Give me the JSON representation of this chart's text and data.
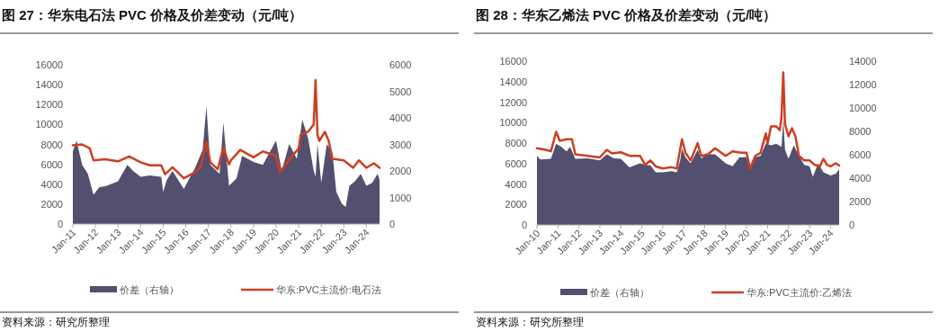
{
  "chart_data": [
    {
      "type": "line",
      "title": "图 27：华东电石法 PVC 价格及价差变动（元/吨）",
      "annotations": [
        "资料来源：研究所整理"
      ],
      "legend": "bottom",
      "grid": false,
      "xlim": [
        "2011-01",
        "2024-08"
      ],
      "xticks": [
        {
          "value": "2011-01",
          "label": "Jan-11"
        },
        {
          "value": "2012-01",
          "label": "Jan-12"
        },
        {
          "value": "2013-01",
          "label": "Jan-13"
        },
        {
          "value": "2014-01",
          "label": "Jan-14"
        },
        {
          "value": "2015-01",
          "label": "Jan-15"
        },
        {
          "value": "2016-01",
          "label": "Jan-16"
        },
        {
          "value": "2017-01",
          "label": "Jan-17"
        },
        {
          "value": "2018-01",
          "label": "Jan-18"
        },
        {
          "value": "2019-01",
          "label": "Jan-19"
        },
        {
          "value": "2020-01",
          "label": "Jan-20"
        },
        {
          "value": "2021-01",
          "label": "Jan-21"
        },
        {
          "value": "2022-01",
          "label": "Jan-22"
        },
        {
          "value": "2023-01",
          "label": "Jan-23"
        },
        {
          "value": "2024-01",
          "label": "Jan-24"
        }
      ],
      "ylim": [
        0,
        16000
      ],
      "yticks": [
        0,
        2000,
        4000,
        6000,
        8000,
        10000,
        12000,
        14000,
        16000
      ],
      "y2lim": [
        0,
        6000
      ],
      "y2ticks": [
        0,
        1000,
        2000,
        3000,
        4000,
        5000,
        6000
      ],
      "series": [
        {
          "name": "价差（右轴）",
          "type": "area",
          "axis": "y2",
          "color": "#534f6e",
          "x": [
            "2011-01",
            "2011-03",
            "2011-06",
            "2011-09",
            "2011-12",
            "2012-03",
            "2012-07",
            "2013-01",
            "2013-06",
            "2013-09",
            "2014-01",
            "2014-06",
            "2014-12",
            "2015-01",
            "2015-03",
            "2015-06",
            "2015-12",
            "2016-06",
            "2016-10",
            "2016-12",
            "2017-02",
            "2017-07",
            "2017-09",
            "2017-12",
            "2018-04",
            "2018-07",
            "2019-01",
            "2019-06",
            "2020-01",
            "2020-04",
            "2020-08",
            "2020-12",
            "2021-03",
            "2021-06",
            "2021-09",
            "2021-10",
            "2021-11",
            "2022-01",
            "2022-04",
            "2022-07",
            "2022-09",
            "2022-12",
            "2023-02",
            "2023-04",
            "2023-07",
            "2023-10",
            "2024-01",
            "2024-04",
            "2024-07",
            "2024-08"
          ],
          "values": [
            2740,
            3140,
            2230,
            1890,
            1100,
            1380,
            1440,
            1610,
            2230,
            2000,
            1780,
            1830,
            1780,
            1210,
            1660,
            2000,
            1320,
            2120,
            2800,
            4440,
            2230,
            1890,
            3820,
            1440,
            1720,
            2570,
            2340,
            2230,
            3140,
            2000,
            3020,
            2460,
            3930,
            3250,
            2000,
            1780,
            3020,
            1550,
            3020,
            2680,
            1210,
            760,
            645,
            1440,
            1610,
            1890,
            1440,
            1550,
            1890,
            1660
          ]
        },
        {
          "name": "华东:PVC主流价:电石法",
          "color": "#cc3f20",
          "x": [
            "2011-01",
            "2011-06",
            "2011-10",
            "2011-12",
            "2012-06",
            "2013-01",
            "2013-07",
            "2014-01",
            "2014-06",
            "2014-12",
            "2015-02",
            "2015-06",
            "2015-12",
            "2016-06",
            "2016-09",
            "2016-12",
            "2017-02",
            "2017-06",
            "2017-09",
            "2017-12",
            "2018-01",
            "2018-06",
            "2019-01",
            "2019-06",
            "2020-01",
            "2020-03",
            "2020-09",
            "2021-01",
            "2021-02",
            "2021-06",
            "2021-09",
            "2021-10",
            "2021-11",
            "2021-12",
            "2022-03",
            "2022-05",
            "2022-07",
            "2023-01",
            "2023-06",
            "2023-09",
            "2024-01",
            "2024-05",
            "2024-08"
          ],
          "values": [
            7900,
            8000,
            7600,
            6400,
            6500,
            6300,
            6800,
            6200,
            5900,
            5900,
            5000,
            5700,
            4600,
            5200,
            5800,
            8300,
            6200,
            5500,
            7700,
            6000,
            6400,
            7450,
            6700,
            7300,
            6850,
            5200,
            6700,
            7600,
            8960,
            9270,
            10000,
            14460,
            8960,
            8360,
            9270,
            8360,
            6550,
            6400,
            5650,
            6400,
            5650,
            6100,
            5650
          ]
        }
      ]
    },
    {
      "type": "line",
      "title": "图 28：华东乙烯法 PVC 价格及价差变动（元/吨）",
      "annotations": [
        "资料来源：研究所整理"
      ],
      "legend": "bottom",
      "grid": false,
      "xlim": [
        "2010-01",
        "2024-06"
      ],
      "xticks": [
        {
          "value": "2010-01",
          "label": "Jan-10"
        },
        {
          "value": "2011-01",
          "label": "Jan-11"
        },
        {
          "value": "2012-01",
          "label": "Jan-12"
        },
        {
          "value": "2013-01",
          "label": "Jan-13"
        },
        {
          "value": "2014-01",
          "label": "Jan-14"
        },
        {
          "value": "2015-01",
          "label": "Jan-15"
        },
        {
          "value": "2016-01",
          "label": "Jan-16"
        },
        {
          "value": "2017-01",
          "label": "Jan-17"
        },
        {
          "value": "2018-01",
          "label": "Jan-18"
        },
        {
          "value": "2019-01",
          "label": "Jan-19"
        },
        {
          "value": "2020-01",
          "label": "Jan-20"
        },
        {
          "value": "2021-01",
          "label": "Jan-21"
        },
        {
          "value": "2022-01",
          "label": "Jan-22"
        },
        {
          "value": "2023-01",
          "label": "Jan-23"
        },
        {
          "value": "2024-01",
          "label": "Jan-24"
        }
      ],
      "ylim": [
        0,
        16000
      ],
      "yticks": [
        0,
        2000,
        4000,
        6000,
        8000,
        10000,
        12000,
        14000,
        16000
      ],
      "y2lim": [
        0,
        14000
      ],
      "y2ticks": [
        0,
        2000,
        4000,
        6000,
        8000,
        10000,
        12000,
        14000
      ],
      "series": [
        {
          "name": "价差（右轴）",
          "type": "area",
          "axis": "y2",
          "color": "#534f6e",
          "x": [
            "2010-01",
            "2010-03",
            "2010-09",
            "2010-12",
            "2011-03",
            "2011-06",
            "2011-08",
            "2011-11",
            "2012-06",
            "2013-01",
            "2013-05",
            "2013-09",
            "2014-01",
            "2014-06",
            "2014-12",
            "2015-03",
            "2015-06",
            "2015-09",
            "2016-01",
            "2016-06",
            "2016-09",
            "2016-11",
            "2016-12",
            "2017-02",
            "2017-05",
            "2017-09",
            "2017-11",
            "2018-01",
            "2018-03",
            "2018-07",
            "2019-01",
            "2019-05",
            "2019-09",
            "2020-01",
            "2020-03",
            "2020-06",
            "2020-09",
            "2020-12",
            "2021-03",
            "2021-06",
            "2021-09",
            "2021-10",
            "2021-11",
            "2022-01",
            "2022-04",
            "2022-07",
            "2022-10",
            "2023-01",
            "2023-03",
            "2023-06",
            "2023-09",
            "2024-01",
            "2024-04",
            "2024-06"
          ],
          "values": [
            5910,
            5600,
            5650,
            6940,
            6680,
            6290,
            6680,
            5650,
            5700,
            5520,
            6040,
            5700,
            5650,
            4930,
            5270,
            5140,
            5100,
            4500,
            4500,
            4600,
            4500,
            5520,
            6550,
            5780,
            5270,
            6420,
            5700,
            5910,
            6040,
            6040,
            5270,
            5010,
            5780,
            5780,
            5010,
            5780,
            5910,
            6940,
            6810,
            6940,
            6680,
            8990,
            6420,
            5650,
            6810,
            5910,
            5140,
            5010,
            4110,
            5270,
            4500,
            4240,
            4370,
            4750
          ]
        },
        {
          "name": "华东:PVC主流价:乙烯法",
          "color": "#cc3f20",
          "x": [
            "2010-01",
            "2010-06",
            "2010-09",
            "2010-12",
            "2011-02",
            "2011-06",
            "2011-09",
            "2011-11",
            "2012-06",
            "2013-01",
            "2013-05",
            "2013-08",
            "2014-01",
            "2014-06",
            "2014-12",
            "2015-03",
            "2015-06",
            "2015-09",
            "2016-01",
            "2016-06",
            "2016-09",
            "2016-10",
            "2016-12",
            "2017-02",
            "2017-05",
            "2017-09",
            "2017-11",
            "2018-03",
            "2018-07",
            "2019-01",
            "2019-05",
            "2019-10",
            "2020-01",
            "2020-03",
            "2020-06",
            "2020-09",
            "2020-12",
            "2021-01",
            "2021-03",
            "2021-06",
            "2021-08",
            "2021-09",
            "2021-10",
            "2021-11",
            "2022-01",
            "2022-03",
            "2022-05",
            "2022-07",
            "2022-10",
            "2023-01",
            "2023-04",
            "2023-07",
            "2023-09",
            "2023-11",
            "2024-01",
            "2024-04",
            "2024-06"
          ],
          "values": [
            7490,
            7340,
            7200,
            9100,
            8220,
            8370,
            8370,
            6900,
            6750,
            6600,
            7340,
            6990,
            7100,
            6750,
            6750,
            5870,
            6310,
            5720,
            5520,
            5640,
            5520,
            6460,
            8370,
            7050,
            6310,
            7990,
            6750,
            6900,
            7490,
            6750,
            7190,
            7050,
            7050,
            5520,
            6750,
            7050,
            8950,
            7930,
            9630,
            9630,
            9250,
            10570,
            14910,
            9830,
            8660,
            9450,
            8660,
            6750,
            6310,
            6310,
            5870,
            5720,
            6460,
            5870,
            5720,
            6020,
            5800
          ]
        }
      ]
    }
  ]
}
